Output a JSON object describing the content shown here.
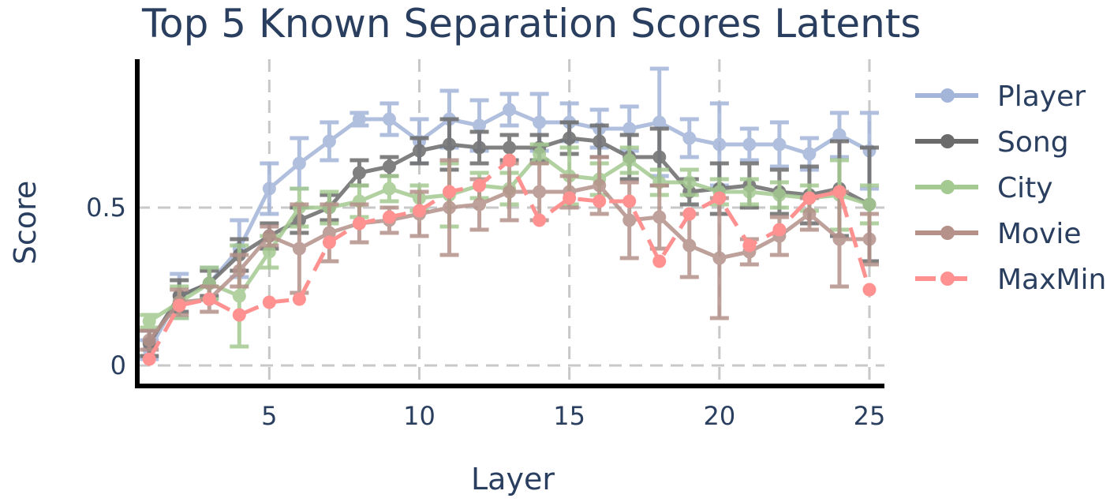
{
  "chart_data": {
    "type": "line",
    "title": "Top 5 Known Separation Scores Latents",
    "xlabel": "Layer",
    "ylabel": "Score",
    "xlim": [
      0.6,
      25.5
    ],
    "ylim": [
      -0.065,
      0.97
    ],
    "xticks": [
      5,
      10,
      15,
      20,
      25
    ],
    "yticks": [
      0,
      0.5
    ],
    "ytick_labels": [
      "0",
      "0.5"
    ],
    "grid": true,
    "legend_position": "right",
    "x": [
      1,
      2,
      3,
      4,
      5,
      6,
      7,
      8,
      9,
      10,
      11,
      12,
      13,
      14,
      15,
      16,
      17,
      18,
      19,
      20,
      21,
      22,
      23,
      24,
      25
    ],
    "series": [
      {
        "name": "Player",
        "color": "#a3b5d8",
        "dash": false,
        "values": [
          0.05,
          0.22,
          0.26,
          0.37,
          0.56,
          0.64,
          0.71,
          0.78,
          0.78,
          0.71,
          0.78,
          0.76,
          0.81,
          0.77,
          0.77,
          0.75,
          0.75,
          0.77,
          0.72,
          0.7,
          0.7,
          0.7,
          0.67,
          0.73,
          0.68
        ],
        "errors": [
          0.03,
          0.07,
          0.05,
          0.09,
          0.08,
          0.08,
          0.06,
          0.02,
          0.05,
          0.07,
          0.09,
          0.08,
          0.05,
          0.09,
          0.06,
          0.06,
          0.07,
          0.17,
          0.06,
          0.13,
          0.05,
          0.07,
          0.05,
          0.07,
          0.12
        ]
      },
      {
        "name": "Song",
        "color": "#6b6b6b",
        "dash": false,
        "values": [
          0.07,
          0.22,
          0.26,
          0.35,
          0.41,
          0.46,
          0.5,
          0.61,
          0.63,
          0.68,
          0.7,
          0.69,
          0.69,
          0.69,
          0.72,
          0.71,
          0.66,
          0.66,
          0.55,
          0.56,
          0.57,
          0.55,
          0.54,
          0.56,
          0.51
        ],
        "errors": [
          0.04,
          0.05,
          0.04,
          0.05,
          0.04,
          0.04,
          0.04,
          0.04,
          0.03,
          0.04,
          0.08,
          0.05,
          0.04,
          0.04,
          0.05,
          0.05,
          0.07,
          0.09,
          0.04,
          0.08,
          0.07,
          0.07,
          0.09,
          0.15,
          0.18
        ]
      },
      {
        "name": "City",
        "color": "#a4c991",
        "dash": false,
        "values": [
          0.14,
          0.2,
          0.26,
          0.22,
          0.36,
          0.5,
          0.5,
          0.52,
          0.56,
          0.53,
          0.54,
          0.57,
          0.56,
          0.67,
          0.6,
          0.59,
          0.65,
          0.58,
          0.58,
          0.55,
          0.55,
          0.54,
          0.53,
          0.54,
          0.51
        ],
        "errors": [
          0.02,
          0.05,
          0.05,
          0.16,
          0.05,
          0.06,
          0.05,
          0.05,
          0.04,
          0.04,
          0.1,
          0.04,
          0.05,
          0.03,
          0.09,
          0.05,
          0.04,
          0.04,
          0.04,
          0.04,
          0.04,
          0.04,
          0.04,
          0.11,
          0.06
        ]
      },
      {
        "name": "Movie",
        "color": "#b5918a",
        "dash": false,
        "values": [
          0.08,
          0.2,
          0.21,
          0.3,
          0.41,
          0.37,
          0.42,
          0.45,
          0.46,
          0.48,
          0.5,
          0.51,
          0.55,
          0.55,
          0.55,
          0.57,
          0.46,
          0.47,
          0.38,
          0.34,
          0.36,
          0.41,
          0.48,
          0.4,
          0.4
        ],
        "errors": [
          0.03,
          0.04,
          0.04,
          0.05,
          0.03,
          0.14,
          0.09,
          0.06,
          0.04,
          0.07,
          0.15,
          0.08,
          0.09,
          0.09,
          0.05,
          0.09,
          0.12,
          0.1,
          0.1,
          0.19,
          0.04,
          0.06,
          0.05,
          0.15,
          0.08
        ]
      },
      {
        "name": "MaxMin",
        "color": "#ff9190",
        "dash": true,
        "values": [
          0.02,
          0.19,
          0.21,
          0.16,
          0.2,
          0.21,
          0.39,
          0.45,
          0.47,
          0.49,
          0.55,
          0.57,
          0.65,
          0.46,
          0.53,
          0.52,
          0.52,
          0.33,
          0.48,
          0.53,
          0.38,
          0.43,
          0.53,
          0.55,
          0.24
        ],
        "errors": [
          0,
          0,
          0,
          0,
          0,
          0,
          0,
          0,
          0,
          0,
          0,
          0,
          0,
          0,
          0,
          0,
          0,
          0,
          0,
          0,
          0,
          0,
          0,
          0,
          0
        ]
      }
    ]
  }
}
